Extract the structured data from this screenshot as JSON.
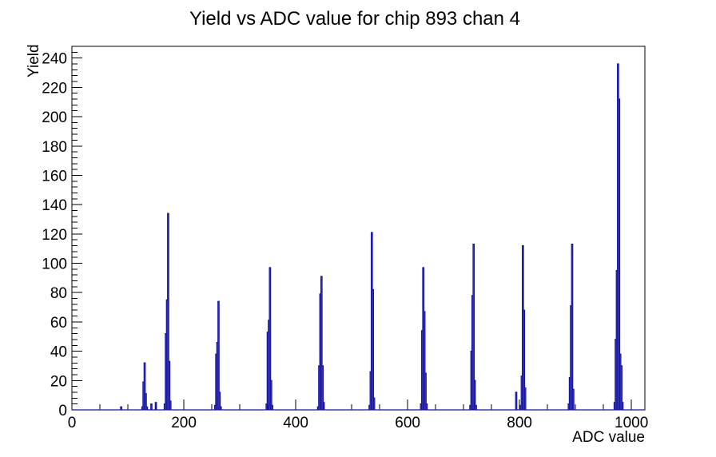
{
  "window": {
    "background": "#ffffff"
  },
  "chart_data": {
    "type": "histogram",
    "title": "Yield vs ADC value for chip 893 chan 4",
    "xlabel": "ADC value",
    "ylabel": "Yield",
    "xlim": [
      0,
      1024
    ],
    "ylim": [
      0,
      248
    ],
    "x_major_ticks": [
      0,
      200,
      400,
      600,
      800,
      1000
    ],
    "x_minor_tick_step": 50,
    "y_major_tick_max": 240,
    "y_major_tick_step": 20,
    "y_minor_tick_step": 4,
    "grid": false,
    "legend": false,
    "line_color": "#1515a3",
    "axis_color": "#000000",
    "bin_width": 2,
    "bins": [
      [
        88,
        2
      ],
      [
        126,
        2
      ],
      [
        128,
        19
      ],
      [
        130,
        32
      ],
      [
        132,
        11
      ],
      [
        134,
        2
      ],
      [
        142,
        4
      ],
      [
        150,
        5
      ],
      [
        166,
        4
      ],
      [
        168,
        52
      ],
      [
        170,
        75
      ],
      [
        172,
        134
      ],
      [
        174,
        33
      ],
      [
        176,
        6
      ],
      [
        256,
        3
      ],
      [
        258,
        38
      ],
      [
        260,
        46
      ],
      [
        262,
        74
      ],
      [
        264,
        12
      ],
      [
        266,
        2
      ],
      [
        348,
        4
      ],
      [
        350,
        53
      ],
      [
        352,
        61
      ],
      [
        354,
        97
      ],
      [
        356,
        20
      ],
      [
        358,
        3
      ],
      [
        440,
        2
      ],
      [
        442,
        30
      ],
      [
        444,
        79
      ],
      [
        446,
        91
      ],
      [
        448,
        30
      ],
      [
        450,
        5
      ],
      [
        532,
        3
      ],
      [
        534,
        26
      ],
      [
        536,
        121
      ],
      [
        538,
        82
      ],
      [
        540,
        8
      ],
      [
        624,
        4
      ],
      [
        626,
        54
      ],
      [
        628,
        97
      ],
      [
        630,
        67
      ],
      [
        632,
        25
      ],
      [
        634,
        4
      ],
      [
        712,
        3
      ],
      [
        714,
        40
      ],
      [
        716,
        78
      ],
      [
        718,
        113
      ],
      [
        720,
        20
      ],
      [
        722,
        3
      ],
      [
        794,
        12
      ],
      [
        802,
        3
      ],
      [
        804,
        23
      ],
      [
        806,
        112
      ],
      [
        808,
        68
      ],
      [
        810,
        15
      ],
      [
        888,
        4
      ],
      [
        890,
        22
      ],
      [
        892,
        71
      ],
      [
        894,
        113
      ],
      [
        896,
        14
      ],
      [
        970,
        5
      ],
      [
        972,
        48
      ],
      [
        974,
        95
      ],
      [
        976,
        236
      ],
      [
        978,
        212
      ],
      [
        980,
        38
      ],
      [
        982,
        30
      ],
      [
        984,
        5
      ]
    ],
    "peaks": [
      {
        "adc": 130,
        "yield": 32
      },
      {
        "adc": 172,
        "yield": 134
      },
      {
        "adc": 262,
        "yield": 74
      },
      {
        "adc": 354,
        "yield": 97
      },
      {
        "adc": 446,
        "yield": 91
      },
      {
        "adc": 536,
        "yield": 121
      },
      {
        "adc": 628,
        "yield": 97
      },
      {
        "adc": 718,
        "yield": 113
      },
      {
        "adc": 806,
        "yield": 112
      },
      {
        "adc": 894,
        "yield": 113
      },
      {
        "adc": 976,
        "yield": 236
      }
    ]
  }
}
